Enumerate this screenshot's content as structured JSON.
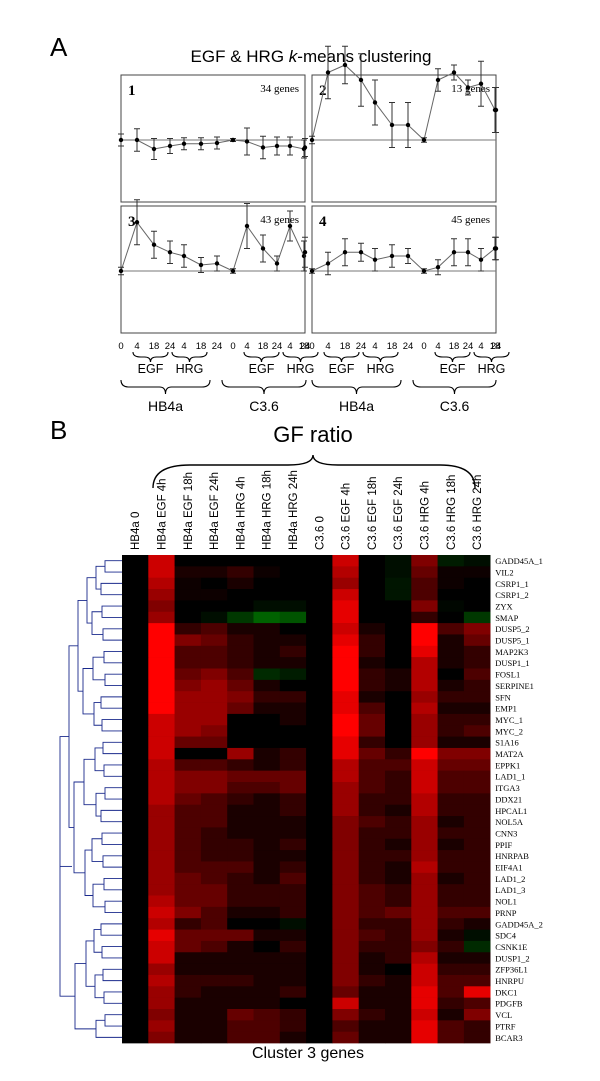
{
  "panel_a": {
    "label": "A",
    "title_prefix": "EGF & HRG ",
    "title_italic": "k",
    "title_suffix": "-means clustering"
  },
  "panel_b": {
    "label": "B",
    "gf_ratio_label": "GF ratio",
    "footer": "Cluster 3 genes"
  },
  "chart_data": [
    {
      "type": "line",
      "title": "EGF & HRG k-means clustering",
      "x_ticks": [
        "0",
        "4",
        "18",
        "24",
        "4",
        "18",
        "24",
        "0",
        "4",
        "18",
        "24",
        "4",
        "18",
        "24"
      ],
      "group_labels": [
        "EGF",
        "HRG",
        "EGF",
        "HRG"
      ],
      "cell_line_labels": [
        "HB4a",
        "C3.6"
      ],
      "panels": [
        {
          "number": "1",
          "genes_label": "34 genes",
          "values": [
            0.0,
            0.0,
            -0.12,
            -0.08,
            -0.05,
            -0.05,
            -0.04,
            0.0,
            -0.02,
            -0.1,
            -0.08,
            -0.08,
            -0.12,
            -0.1
          ],
          "errors": [
            0.08,
            0.15,
            0.14,
            0.1,
            0.08,
            0.08,
            0.08,
            0.02,
            0.18,
            0.15,
            0.12,
            0.12,
            0.12,
            0.12
          ]
        },
        {
          "number": "2",
          "genes_label": "13 genes",
          "values": [
            0.0,
            0.9,
            1.0,
            0.8,
            0.5,
            0.2,
            0.2,
            0.0,
            0.8,
            0.9,
            0.7,
            0.75,
            0.4,
            0.4
          ],
          "errors": [
            0.05,
            0.35,
            0.25,
            0.35,
            0.3,
            0.3,
            0.3,
            0.03,
            0.15,
            0.1,
            0.1,
            0.3,
            0.3,
            0.3
          ]
        },
        {
          "number": "3",
          "genes_label": "43 genes",
          "values": [
            0.0,
            0.65,
            0.35,
            0.25,
            0.2,
            0.08,
            0.1,
            0.0,
            0.6,
            0.3,
            0.1,
            0.6,
            0.2,
            0.25
          ],
          "errors": [
            0.05,
            0.3,
            0.18,
            0.15,
            0.15,
            0.1,
            0.1,
            0.03,
            0.3,
            0.18,
            0.1,
            0.2,
            0.2,
            0.2
          ]
        },
        {
          "number": "4",
          "genes_label": "45 genes",
          "values": [
            0.0,
            0.1,
            0.25,
            0.25,
            0.15,
            0.2,
            0.2,
            0.0,
            0.05,
            0.25,
            0.25,
            0.15,
            0.3,
            0.3
          ],
          "errors": [
            0.03,
            0.15,
            0.18,
            0.12,
            0.15,
            0.15,
            0.1,
            0.03,
            0.1,
            0.18,
            0.18,
            0.15,
            0.15,
            0.15
          ]
        }
      ]
    },
    {
      "type": "heatmap",
      "columns": [
        "HB4a 0",
        "HB4a EGF 4h",
        "HB4a EGF 18h",
        "HB4a EGF 24h",
        "HB4a HRG 4h",
        "HB4a HRG 18h",
        "HB4a HRG 24h",
        "C3.6 0",
        "C3.6 EGF 4h",
        "C3.6 EGF 18h",
        "C3.6 EGF 24h",
        "C3.6 HRG 4h",
        "C3.6 HRG 18h",
        "C3.6 HRG 24h"
      ],
      "rows": [
        "GADD45A_1",
        "VIL2",
        "CSRP1_1",
        "CSRP1_2",
        "ZYX",
        "SMAP",
        "DUSP5_2",
        "DUSP5_1",
        "MAP2K3",
        "DUSP1_1",
        "FOSL1",
        "SERPINE1",
        "SFN",
        "EMP1",
        "MYC_1",
        "MYC_2",
        "S1A16",
        "MAT2A",
        "EPPK1",
        "LAD1_1",
        "ITGA3",
        "DDX21",
        "HPCAL1",
        "NOL5A",
        "CNN3",
        "PPIF",
        "HNRPAB",
        "EIF4A1",
        "LAD1_2",
        "LAD1_3",
        "NOL1",
        "PRNP",
        "GADD45A_2",
        "SDC4",
        "CSNK1E",
        "DUSP1_2",
        "ZFP36L1",
        "HNRPU",
        "DKC1",
        "PDGFB",
        "VCL",
        "PTRF",
        "BCAR3"
      ],
      "values": [
        [
          0,
          0.8,
          0,
          0,
          0,
          0,
          0,
          0,
          0.8,
          0,
          -0.1,
          0.5,
          -0.2,
          -0.1
        ],
        [
          0,
          0.8,
          0.1,
          0.1,
          0.2,
          0.05,
          0,
          0,
          0.7,
          0,
          -0.1,
          0.4,
          0.05,
          0.05
        ],
        [
          0,
          0.7,
          0.05,
          0,
          0.1,
          0,
          0,
          0,
          0.6,
          0,
          -0.15,
          0.3,
          0.05,
          0
        ],
        [
          0,
          0.6,
          0.05,
          0.05,
          0,
          0,
          0,
          0,
          0.8,
          0,
          -0.15,
          0.3,
          0,
          0
        ],
        [
          0,
          0.5,
          0,
          0,
          0,
          -0.1,
          -0.1,
          0,
          0.9,
          0,
          0,
          0.5,
          -0.05,
          0
        ],
        [
          0,
          0.6,
          0,
          -0.1,
          -0.4,
          -0.7,
          -0.6,
          0,
          0.9,
          0,
          0,
          0.2,
          0,
          -0.4
        ],
        [
          0,
          1,
          0.2,
          0.3,
          0.1,
          0.1,
          0,
          0,
          0.8,
          0.1,
          0,
          1,
          0.3,
          0.5
        ],
        [
          0,
          1,
          0.5,
          0.4,
          0.2,
          0.1,
          0.1,
          0,
          0.9,
          0.2,
          0,
          1,
          0.1,
          0.4
        ],
        [
          0,
          1,
          0.3,
          0.3,
          0.2,
          0.1,
          0.2,
          0,
          1,
          0.2,
          0,
          0.9,
          0.1,
          0.2
        ],
        [
          0,
          1,
          0.3,
          0.3,
          0.2,
          0.1,
          0.1,
          0,
          1,
          0.1,
          0,
          0.7,
          0.1,
          0.2
        ],
        [
          0,
          1,
          0.4,
          0.5,
          0.3,
          -0.3,
          -0.2,
          0,
          1,
          0.2,
          0.1,
          0.7,
          0,
          0.3
        ],
        [
          0,
          1,
          0.5,
          0.6,
          0.4,
          0.1,
          0,
          0,
          1,
          0.2,
          0.1,
          0.7,
          0.1,
          0.2
        ],
        [
          0,
          1,
          0.6,
          0.6,
          0.5,
          0.2,
          0.2,
          0,
          0.9,
          0.1,
          0,
          0.6,
          0.2,
          0.2
        ],
        [
          0,
          1,
          0.6,
          0.6,
          0.4,
          0.1,
          0.1,
          0,
          0.9,
          0.3,
          0,
          0.7,
          0.1,
          0.1
        ],
        [
          0,
          0.8,
          0.6,
          0.6,
          0,
          0,
          0.1,
          0,
          1,
          0.4,
          0,
          0.6,
          0.2,
          0.2
        ],
        [
          0,
          0.8,
          0.6,
          0.5,
          0,
          0,
          0,
          0,
          1,
          0.4,
          0,
          0.6,
          0.2,
          0.3
        ],
        [
          0,
          0.8,
          0.4,
          0.4,
          0,
          0,
          0,
          0,
          0.9,
          0.2,
          0,
          0.6,
          0.1,
          0.1
        ],
        [
          0,
          0.8,
          0,
          0,
          0.6,
          0.1,
          0.2,
          0,
          0.9,
          0.4,
          0.2,
          1,
          0.5,
          0.5
        ],
        [
          0,
          0.7,
          0.3,
          0.3,
          0.2,
          0.1,
          0.2,
          0,
          0.7,
          0.3,
          0.3,
          0.8,
          0.4,
          0.4
        ],
        [
          0,
          0.7,
          0.5,
          0.5,
          0.4,
          0.4,
          0.4,
          0,
          0.7,
          0.3,
          0.2,
          0.8,
          0.3,
          0.3
        ],
        [
          0,
          0.7,
          0.5,
          0.5,
          0.3,
          0.3,
          0.4,
          0,
          0.6,
          0.3,
          0.2,
          0.8,
          0.3,
          0.3
        ],
        [
          0,
          0.7,
          0.4,
          0.3,
          0.2,
          0.1,
          0.2,
          0,
          0.6,
          0.2,
          0.2,
          0.7,
          0.2,
          0.2
        ],
        [
          0,
          0.6,
          0.3,
          0.3,
          0.1,
          0.1,
          0.2,
          0,
          0.6,
          0.2,
          0.1,
          0.7,
          0.2,
          0.2
        ],
        [
          0,
          0.6,
          0.3,
          0.3,
          0.1,
          0.1,
          0.1,
          0,
          0.5,
          0.3,
          0.2,
          0.6,
          0.1,
          0.2
        ],
        [
          0,
          0.6,
          0.3,
          0.2,
          0.1,
          0.1,
          0.1,
          0,
          0.5,
          0.2,
          0.2,
          0.6,
          0.2,
          0.2
        ],
        [
          0,
          0.6,
          0.3,
          0.2,
          0.2,
          0.1,
          0.2,
          0,
          0.5,
          0.2,
          0.1,
          0.6,
          0.1,
          0.2
        ],
        [
          0,
          0.6,
          0.3,
          0.2,
          0.2,
          0.1,
          0.1,
          0,
          0.5,
          0.2,
          0.2,
          0.6,
          0.2,
          0.2
        ],
        [
          0,
          0.6,
          0.3,
          0.3,
          0.3,
          0.1,
          0.2,
          0,
          0.5,
          0.2,
          0.1,
          0.7,
          0.2,
          0.2
        ],
        [
          0,
          0.6,
          0.4,
          0.3,
          0.2,
          0.1,
          0.3,
          0,
          0.5,
          0.2,
          0.1,
          0.6,
          0.1,
          0.2
        ],
        [
          0,
          0.6,
          0.4,
          0.4,
          0.2,
          0.2,
          0.2,
          0,
          0.5,
          0.3,
          0.2,
          0.6,
          0.2,
          0.2
        ],
        [
          0,
          0.7,
          0.4,
          0.4,
          0.2,
          0.2,
          0.2,
          0,
          0.5,
          0.3,
          0.2,
          0.6,
          0.2,
          0.2
        ],
        [
          0,
          0.8,
          0.5,
          0.3,
          0.1,
          0.1,
          0.2,
          0,
          0.5,
          0.3,
          0.4,
          0.6,
          0.3,
          0.3
        ],
        [
          0,
          0.7,
          0.2,
          0.3,
          0,
          0,
          -0.1,
          0,
          0.5,
          0.2,
          0.2,
          0.6,
          0.2,
          0.1
        ],
        [
          0,
          0.9,
          0.4,
          0.4,
          0.4,
          0.1,
          0.1,
          0,
          0.5,
          0.3,
          0.2,
          0.6,
          0.1,
          -0.1
        ],
        [
          0,
          0.8,
          0.4,
          0.3,
          0.1,
          0,
          0.2,
          0,
          0.5,
          0.2,
          0.2,
          0.5,
          0.2,
          -0.3
        ],
        [
          0,
          0.8,
          0.1,
          0.1,
          0.1,
          0.1,
          0.1,
          0,
          0.5,
          0.1,
          0.2,
          0.7,
          0.1,
          0.1
        ],
        [
          0,
          0.6,
          0.1,
          0.1,
          0.1,
          0.1,
          0.1,
          0,
          0.5,
          0.1,
          0,
          0.8,
          0.2,
          0.2
        ],
        [
          0,
          0.7,
          0.2,
          0.2,
          0.2,
          0.1,
          0.1,
          0,
          0.5,
          0.2,
          0.1,
          0.8,
          0.3,
          0.3
        ],
        [
          0,
          0.6,
          0.2,
          0.1,
          0.1,
          0.1,
          0.2,
          0,
          0.4,
          0.1,
          0.1,
          0.9,
          0.3,
          0.9
        ],
        [
          0,
          0.6,
          0.1,
          0.1,
          0.1,
          0.1,
          0,
          0,
          0.8,
          0.1,
          0.1,
          0.9,
          0.2,
          0.3
        ],
        [
          0,
          0.5,
          0.1,
          0.1,
          0.4,
          0.3,
          0.2,
          0,
          0.5,
          0.2,
          0.1,
          0.8,
          0.1,
          0.5
        ],
        [
          0,
          0.6,
          0.1,
          0.1,
          0.3,
          0.3,
          0.2,
          0,
          0.3,
          0.1,
          0.1,
          0.9,
          0.3,
          0.2
        ],
        [
          0,
          0.5,
          0.1,
          0.1,
          0.3,
          0.3,
          0.1,
          0,
          0.4,
          0.1,
          0.1,
          0.9,
          0.3,
          0.2
        ]
      ]
    }
  ]
}
